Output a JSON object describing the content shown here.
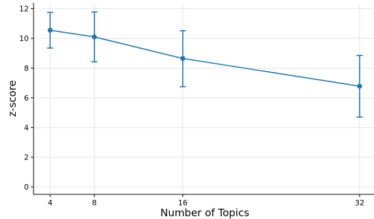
{
  "chart_data": {
    "type": "line",
    "xlabel": "Number of Topics",
    "ylabel": "z-score",
    "x": [
      4,
      8,
      16,
      32
    ],
    "x_ticks": [
      "4",
      "8",
      "16",
      "32"
    ],
    "y_ticks": [
      "0",
      "2",
      "4",
      "6",
      "8",
      "10",
      "12"
    ],
    "xlim": [
      2.5,
      33.3
    ],
    "ylim": [
      -0.5,
      12.4
    ],
    "grid": true,
    "series": [
      {
        "values": [
          10.55,
          10.1,
          8.65,
          6.78
        ],
        "error_low": [
          9.35,
          8.42,
          6.75,
          4.7
        ],
        "error_high": [
          11.75,
          11.78,
          10.52,
          8.85
        ],
        "color": "#1f77b4"
      }
    ]
  }
}
